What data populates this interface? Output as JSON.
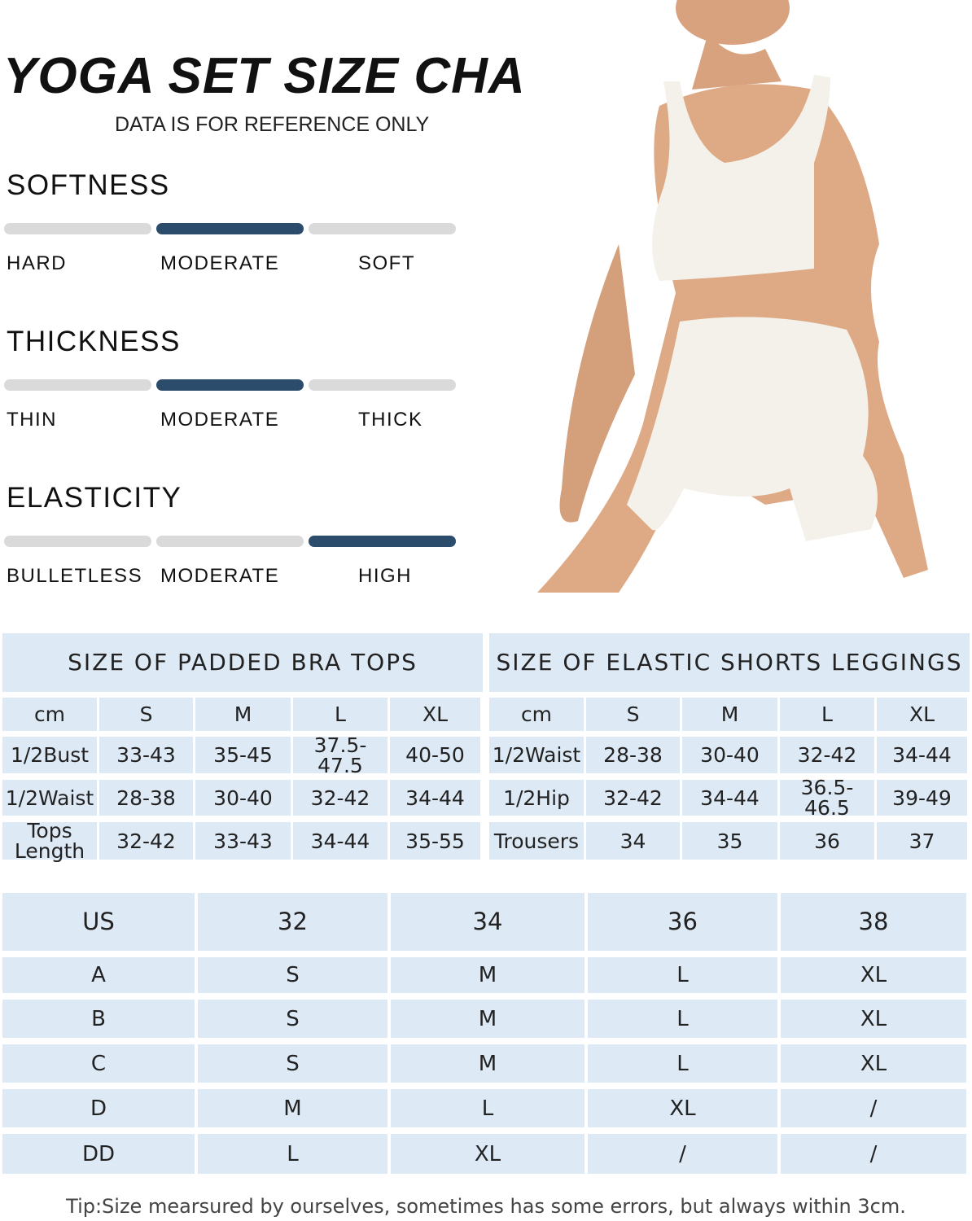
{
  "title": "YOGA SET SIZE CHART",
  "subtitle": "DATA IS FOR REFERENCE ONLY",
  "colors": {
    "active_bar": "#2b4c6b",
    "inactive_bar": "#dadada",
    "table_bg": "#dde9f5"
  },
  "attributes": [
    {
      "name": "SOFTNESS",
      "levels": [
        "HARD",
        "MODERATE",
        "SOFT"
      ],
      "selected": 1
    },
    {
      "name": "THICKNESS",
      "levels": [
        "THIN",
        "MODERATE",
        "THICK"
      ],
      "selected": 1
    },
    {
      "name": "ELASTICITY",
      "levels": [
        "BULLETLESS",
        "MODERATE",
        "HIGH"
      ],
      "selected": 2
    }
  ],
  "bra_table": {
    "title": "SIZE OF PADDED BRA TOPS",
    "headers": [
      "cm",
      "S",
      "M",
      "L",
      "XL"
    ],
    "rows": [
      [
        "1/2Bust",
        "33-43",
        "35-45",
        "37.5-47.5",
        "40-50"
      ],
      [
        "1/2Waist",
        "28-38",
        "30-40",
        "32-42",
        "34-44"
      ],
      [
        "Tops Length",
        "32-42",
        "33-43",
        "34-44",
        "35-55"
      ]
    ]
  },
  "shorts_table": {
    "title": "SIZE OF ELASTIC SHORTS LEGGINGS",
    "headers": [
      "cm",
      "S",
      "M",
      "L",
      "XL"
    ],
    "rows": [
      [
        "1/2Waist",
        "28-38",
        "30-40",
        "32-42",
        "34-44"
      ],
      [
        "1/2Hip",
        "32-42",
        "34-44",
        "36.5-46.5",
        "39-49"
      ],
      [
        "Trousers",
        "34",
        "35",
        "36",
        "37"
      ]
    ]
  },
  "us_table": {
    "headers": [
      "US",
      "32",
      "34",
      "36",
      "38"
    ],
    "rows": [
      [
        "A",
        "S",
        "M",
        "L",
        "XL"
      ],
      [
        "B",
        "S",
        "M",
        "L",
        "XL"
      ],
      [
        "C",
        "S",
        "M",
        "L",
        "XL"
      ],
      [
        "D",
        "M",
        "L",
        "XL",
        "/"
      ],
      [
        "DD",
        "L",
        "XL",
        "/",
        "/"
      ]
    ]
  },
  "tip": "Tip:Size mearsured by ourselves, sometimes has some errors, but always within 3cm."
}
